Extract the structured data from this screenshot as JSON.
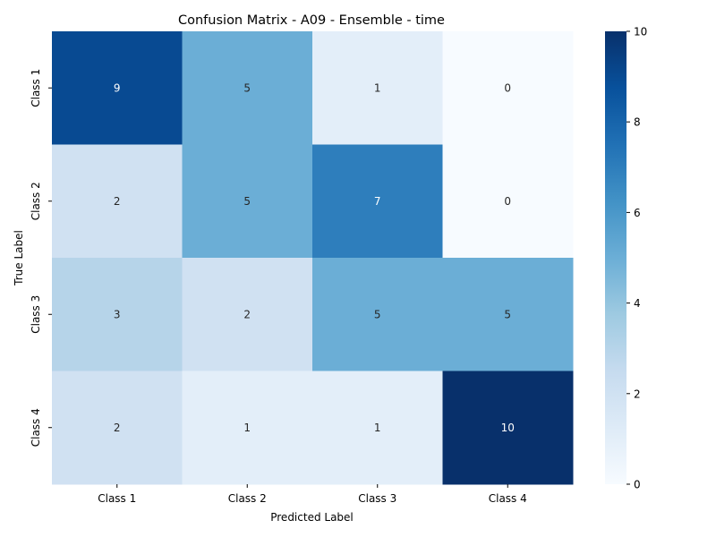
{
  "chart_data": {
    "type": "heatmap",
    "title": "Confusion Matrix - A09 - Ensemble - time",
    "xlabel": "Predicted Label",
    "ylabel": "True Label",
    "x_categories": [
      "Class 1",
      "Class 2",
      "Class 3",
      "Class 4"
    ],
    "y_categories": [
      "Class 1",
      "Class 2",
      "Class 3",
      "Class 4"
    ],
    "values": [
      [
        9,
        5,
        1,
        0
      ],
      [
        2,
        5,
        7,
        0
      ],
      [
        3,
        2,
        5,
        5
      ],
      [
        2,
        1,
        1,
        10
      ]
    ],
    "colorbar": {
      "min": 0,
      "max": 10,
      "ticks": [
        "0",
        "2",
        "4",
        "6",
        "8",
        "10"
      ],
      "colormap": "Blues",
      "stops": [
        "#f7fbff",
        "#deebf7",
        "#c6dbef",
        "#9ecae1",
        "#6baed6",
        "#4292c6",
        "#2171b5",
        "#08519c",
        "#08306b"
      ]
    }
  }
}
